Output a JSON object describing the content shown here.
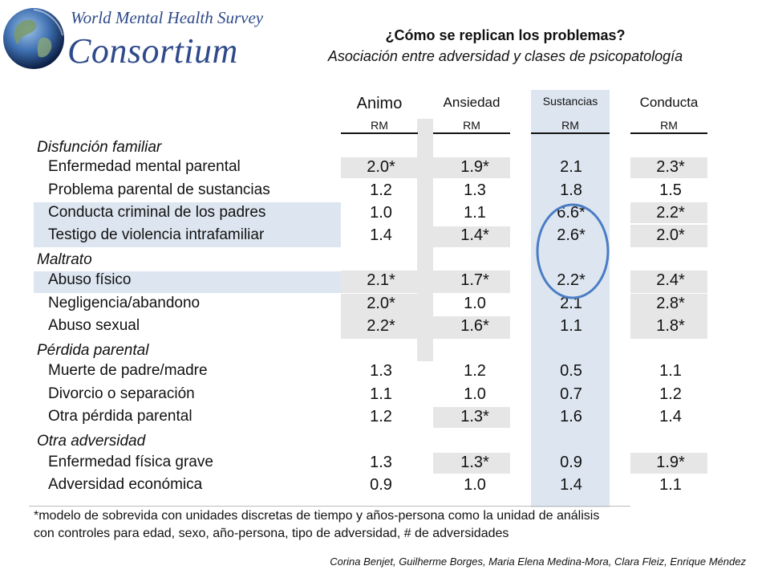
{
  "logo": {
    "line1": "World Mental Health Survey",
    "line2": "Consortium"
  },
  "title": "¿Cómo se replican los problemas?",
  "subtitle": "Asociación entre adversidad y clases de psicopatología",
  "columns": [
    {
      "name": "Animo",
      "sub": "RM"
    },
    {
      "name": "Ansiedad",
      "sub": "RM"
    },
    {
      "name": "Sustancias",
      "sub": "RM"
    },
    {
      "name": "Conducta",
      "sub": "RM"
    }
  ],
  "sections": {
    "s1": "Disfunción familiar",
    "s2": "Maltrato",
    "s3": "Pérdida parental",
    "s4": "Otra adversidad"
  },
  "rows": [
    {
      "label": "Enfermedad mental parental",
      "values": [
        "2.0*",
        "1.9*",
        "2.1",
        "2.3*"
      ]
    },
    {
      "label": "Problema parental de sustancias",
      "values": [
        "1.2",
        "1.3",
        "1.8",
        "1.5"
      ]
    },
    {
      "label": "Conducta criminal de los padres",
      "values": [
        "1.0",
        "1.1",
        "6.6*",
        "2.2*"
      ]
    },
    {
      "label": "Testigo de violencia intrafamiliar",
      "values": [
        "1.4",
        "1.4*",
        "2.6*",
        "2.0*"
      ]
    },
    {
      "label": "Abuso físico",
      "values": [
        "2.1*",
        "1.7*",
        "2.2*",
        "2.4*"
      ]
    },
    {
      "label": "Negligencia/abandono",
      "values": [
        "2.0*",
        "1.0",
        "2.1",
        "2.8*"
      ]
    },
    {
      "label": "Abuso sexual",
      "values": [
        "2.2*",
        "1.6*",
        "1.1",
        "1.8*"
      ]
    },
    {
      "label": "Muerte de padre/madre",
      "values": [
        "1.3",
        "1.2",
        "0.5",
        "1.1"
      ]
    },
    {
      "label": "Divorcio o separación",
      "values": [
        "1.1",
        "1.0",
        "0.7",
        "1.2"
      ]
    },
    {
      "label": "Otra pérdida parental",
      "values": [
        "1.2",
        "1.3*",
        "1.6",
        "1.4"
      ]
    },
    {
      "label": "Enfermedad física grave",
      "values": [
        "1.3",
        "1.3*",
        "0.9",
        "1.9*"
      ]
    },
    {
      "label": "Adversidad económica",
      "values": [
        "0.9",
        "1.0",
        "1.4",
        "1.1"
      ]
    }
  ],
  "footnote": {
    "line1": "*modelo de sobrevida con unidades discretas de tiempo y años-persona como la unidad de análisis",
    "line2": "con controles para edad, sexo, año-persona, tipo de adversidad, # de adversidades"
  },
  "credit": "Corina Benjet, Guilherme Borges, Maria Elena Medina-Mora, Clara Fleiz, Enrique Méndez",
  "colors": {
    "highlight_band": "#dde6f0",
    "grey_cell": "#e6e6e6",
    "circle": "#4a7cc4",
    "logo_text": "#2f4a8a"
  }
}
